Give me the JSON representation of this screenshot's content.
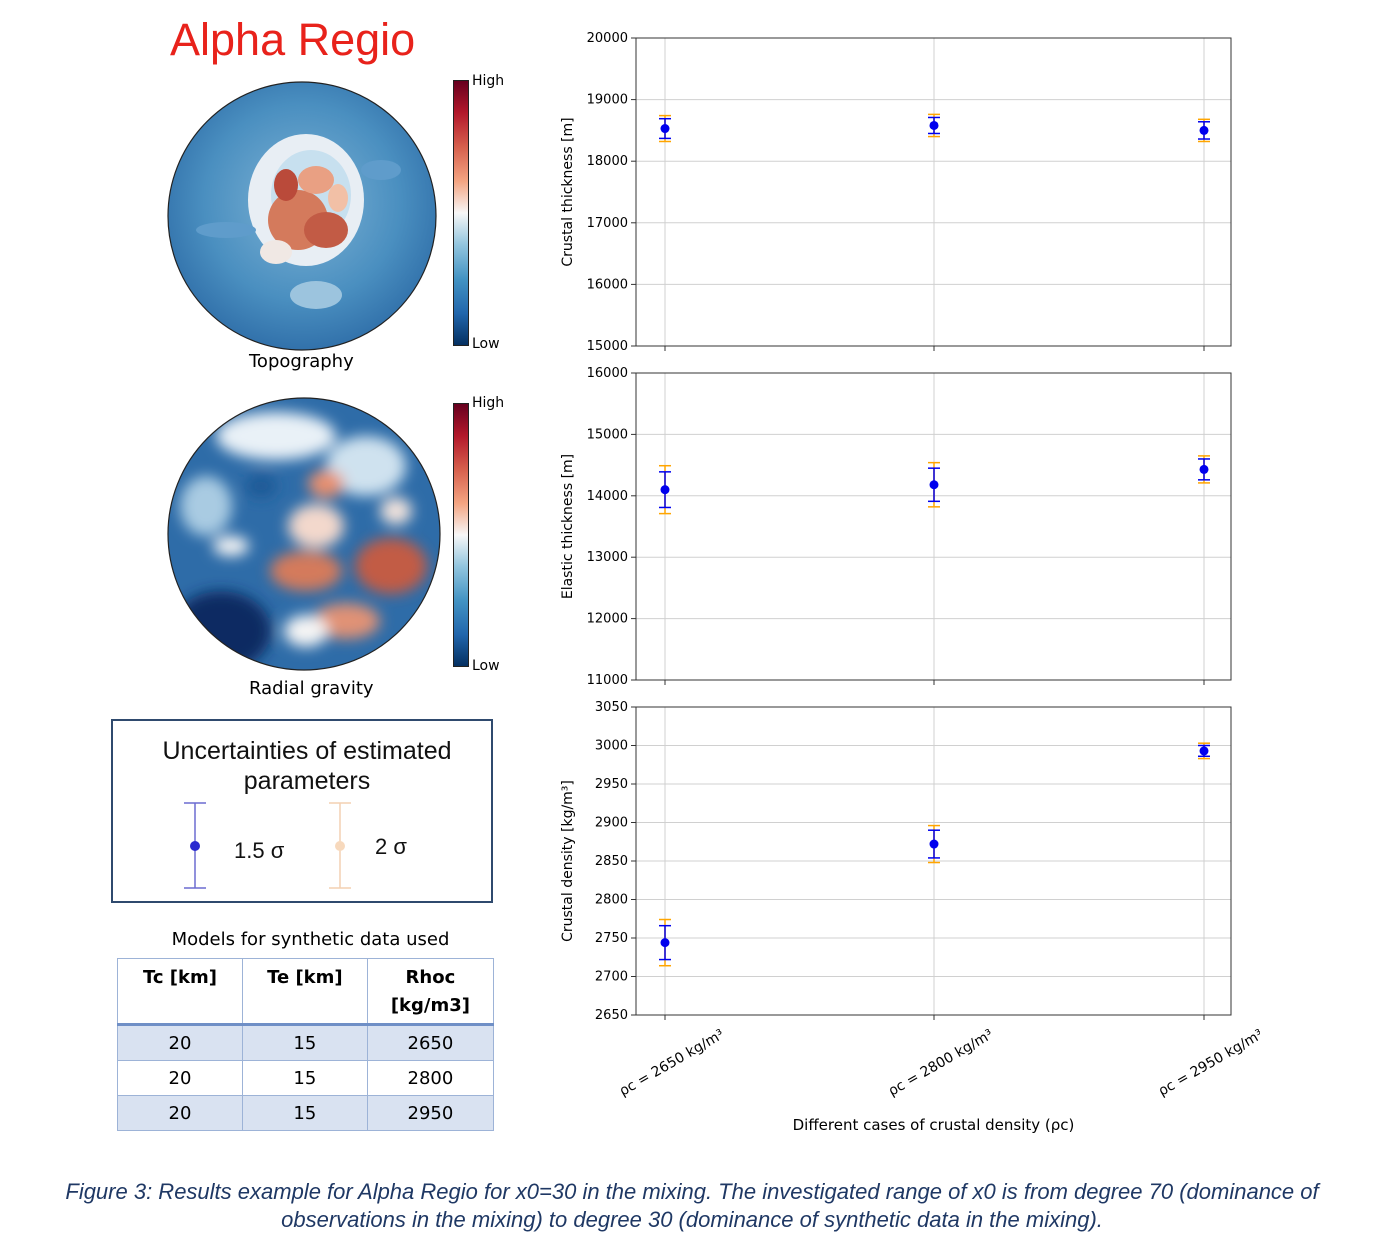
{
  "title": "Alpha Regio",
  "maps": [
    {
      "caption": "Topography",
      "cbar_high": "High",
      "cbar_low": "Low"
    },
    {
      "caption": "Radial gravity",
      "cbar_high": "High",
      "cbar_low": "Low"
    }
  ],
  "legend": {
    "title": "Uncertainties of estimated parameters",
    "items": [
      {
        "label": "1.5 σ",
        "color": "#3333cc"
      },
      {
        "label": "2 σ",
        "color": "#f5cfa8"
      }
    ]
  },
  "table": {
    "caption": "Models for synthetic data used",
    "headers": [
      "Tc [km]",
      "Te [km]",
      "Rhoc [kg/m3]"
    ],
    "rows": [
      [
        "20",
        "15",
        "2650"
      ],
      [
        "20",
        "15",
        "2800"
      ],
      [
        "20",
        "15",
        "2950"
      ]
    ]
  },
  "figure_caption": "Figure 3: Results example for Alpha Regio for x0=30 in the mixing. The investigated range of x0 is from degree 70 (dominance of observations in the mixing) to degree 30 (dominance of synthetic data in the mixing).",
  "colors": {
    "title": "#e8221b",
    "sigma15": "#0000ee",
    "sigma2": "#ffa500",
    "caption": "#1f3864"
  },
  "chart_data": [
    {
      "type": "scatter",
      "ylabel": "Crustal thickness [m]",
      "ylim": [
        15000,
        20000
      ],
      "yticks": [
        15000,
        16000,
        17000,
        18000,
        19000,
        20000
      ],
      "grid": true,
      "categories": [
        "ρc = 2650 kg/m³",
        "ρc = 2800 kg/m³",
        "ρc = 2950 kg/m³"
      ],
      "values": [
        18530,
        18580,
        18500
      ],
      "err_1_5sigma": [
        160,
        130,
        140
      ],
      "err_2sigma": [
        210,
        180,
        180
      ]
    },
    {
      "type": "scatter",
      "ylabel": "Elastic thickness [m]",
      "ylim": [
        11000,
        16000
      ],
      "yticks": [
        11000,
        12000,
        13000,
        14000,
        15000,
        16000
      ],
      "grid": true,
      "categories": [
        "ρc = 2650 kg/m³",
        "ρc = 2800 kg/m³",
        "ρc = 2950 kg/m³"
      ],
      "values": [
        14100,
        14180,
        14430
      ],
      "err_1_5sigma": [
        290,
        270,
        170
      ],
      "err_2sigma": [
        390,
        360,
        220
      ]
    },
    {
      "type": "scatter",
      "ylabel": "Crustal density",
      "yunit": "kg/m³",
      "ylim": [
        2650,
        3050
      ],
      "yticks": [
        2650,
        2700,
        2750,
        2800,
        2850,
        2900,
        2950,
        3000,
        3050
      ],
      "grid": true,
      "xlabel": "Different cases of crustal density (ρc)",
      "categories": [
        "ρc = 2650 kg/m³",
        "ρc = 2800 kg/m³",
        "ρc = 2950 kg/m³"
      ],
      "values": [
        2744,
        2872,
        2993
      ],
      "err_1_5sigma": [
        22,
        18,
        7
      ],
      "err_2sigma": [
        30,
        24,
        10
      ]
    }
  ]
}
